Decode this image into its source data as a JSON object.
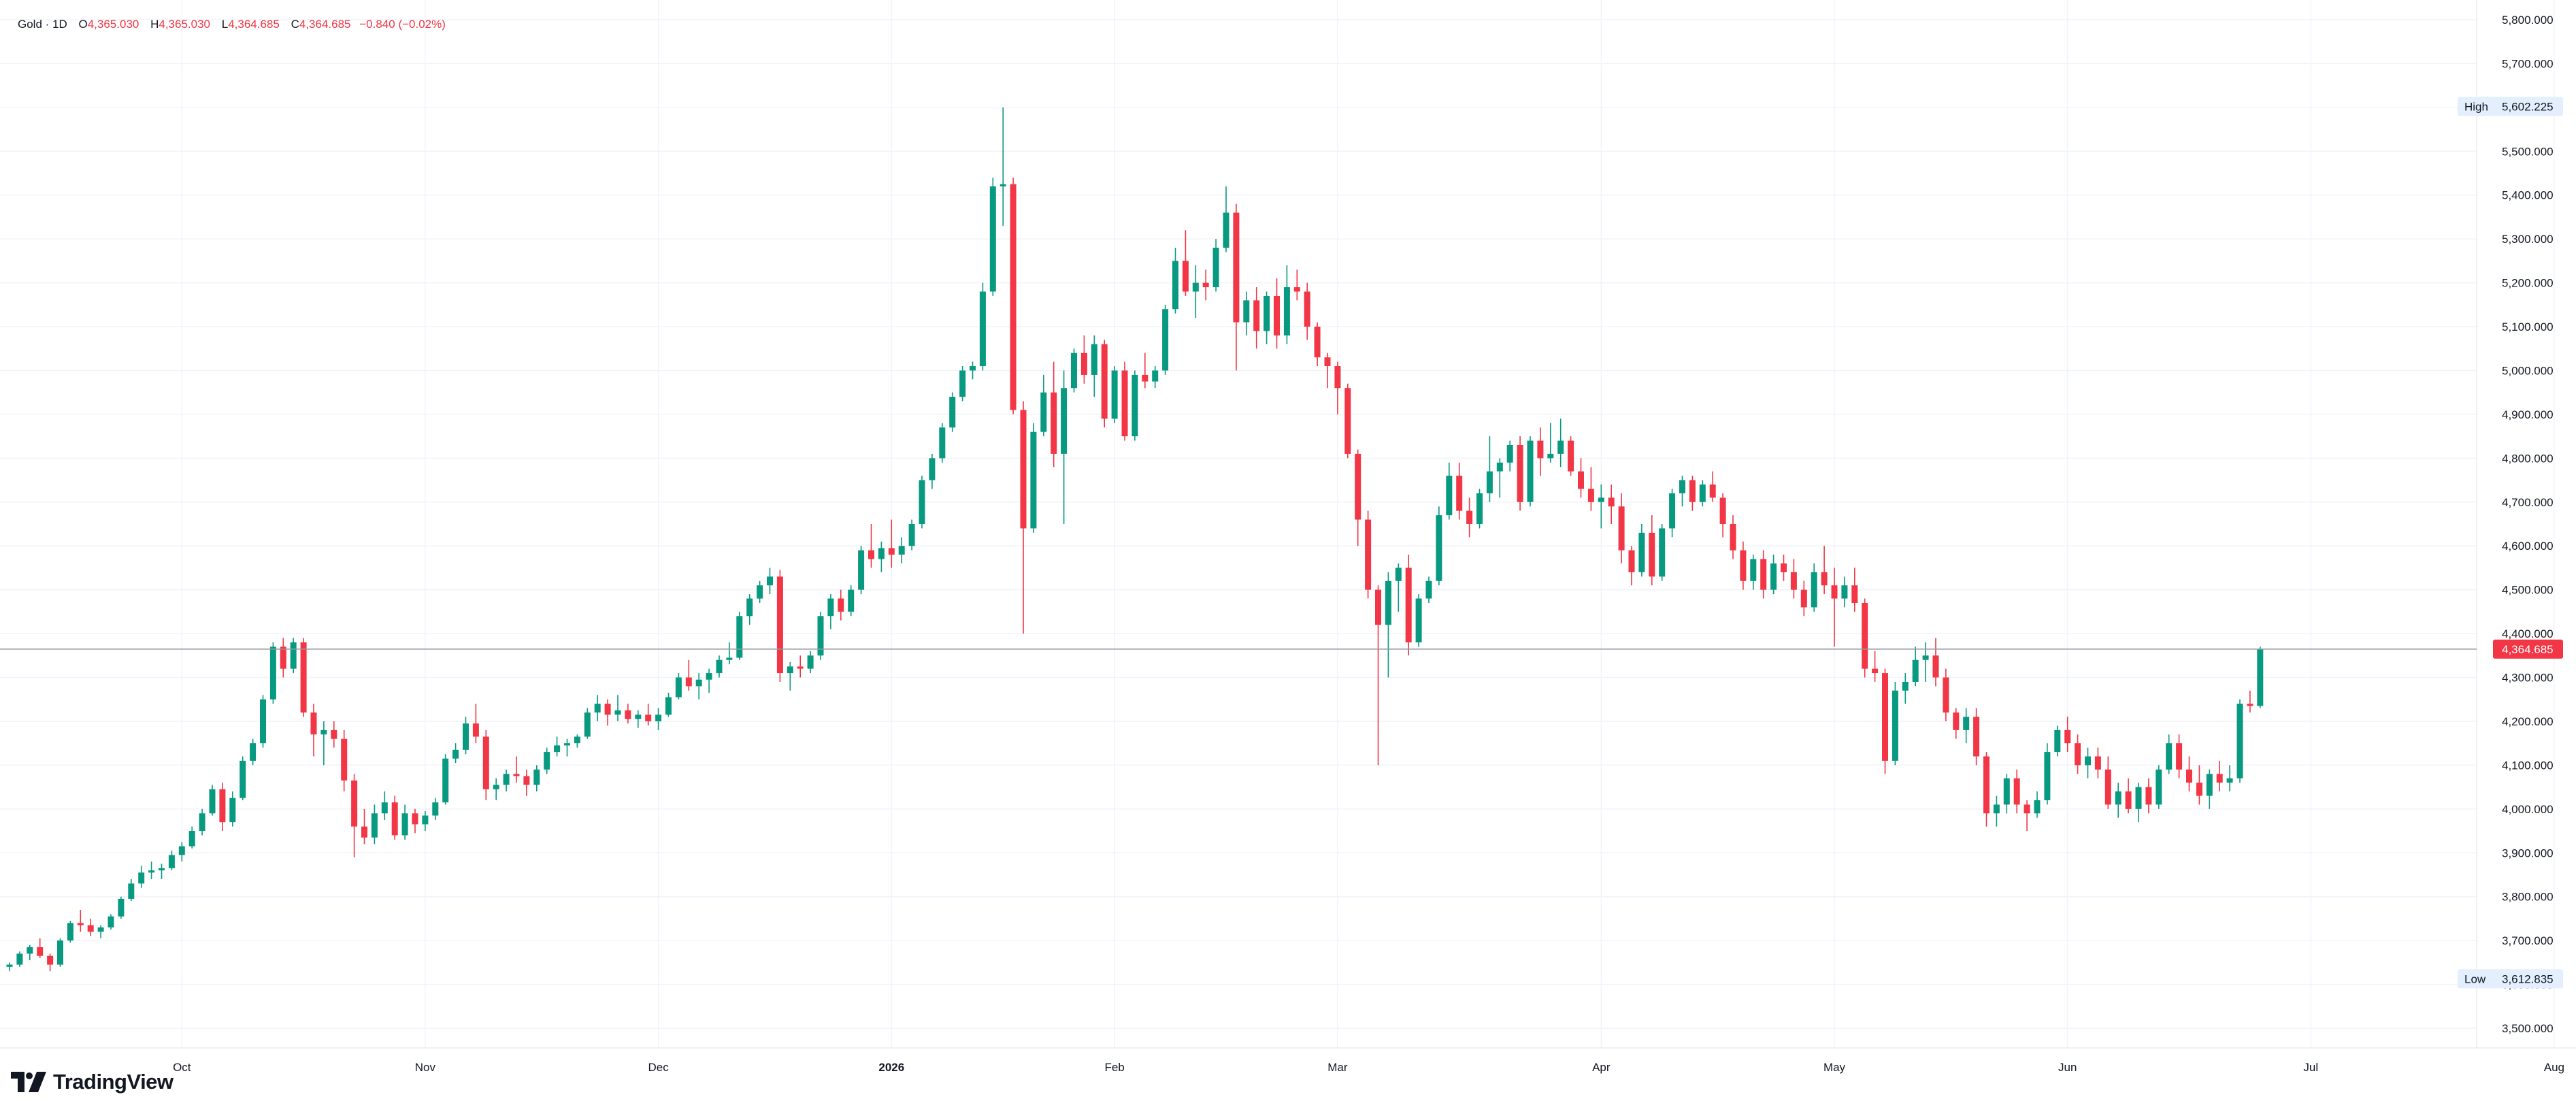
{
  "legend": {
    "symbol": "Gold · 1D",
    "open_label": "O",
    "open": "4,365.030",
    "high_label": "H",
    "high": "4,365.030",
    "low_label": "L",
    "low": "4,364.685",
    "close_label": "C",
    "close": "4,364.685",
    "change": "−0.840 (−0.02%)"
  },
  "brand": {
    "name": "TradingView"
  },
  "colors": {
    "up": "#089981",
    "down": "#f23645",
    "grid": "#f0f3fa",
    "axis_text": "#131722",
    "price_line": "#9598a1",
    "badge_bg": "#e3effd"
  },
  "chart_data": {
    "type": "candlestick",
    "title": "Gold · 1D",
    "price_axis": {
      "ticks": [
        3500,
        3600,
        3700,
        3800,
        3900,
        4000,
        4100,
        4200,
        4300,
        4400,
        4500,
        4600,
        4700,
        4800,
        4900,
        5000,
        5100,
        5200,
        5300,
        5400,
        5500,
        5600,
        5700,
        5800
      ],
      "tick_labels": [
        "3,500.000",
        "3,600.000",
        "3,700.000",
        "3,800.000",
        "3,900.000",
        "4,000.000",
        "4,100.000",
        "4,200.000",
        "4,300.000",
        "4,400.000",
        "4,500.000",
        "4,600.000",
        "4,700.000",
        "4,800.000",
        "4,900.000",
        "5,000.000",
        "5,100.000",
        "5,200.000",
        "5,300.000",
        "5,400.000",
        "5,500.000",
        "5,600.000",
        "5,700.000",
        "5,800.000"
      ],
      "ylim": [
        3455,
        5845
      ]
    },
    "time_axis": {
      "labels": [
        {
          "text": "Oct",
          "index": 17,
          "bold": false
        },
        {
          "text": "Nov",
          "index": 41,
          "bold": false
        },
        {
          "text": "Dec",
          "index": 64,
          "bold": false
        },
        {
          "text": "2026",
          "index": 87,
          "bold": true
        },
        {
          "text": "Feb",
          "index": 109,
          "bold": false
        },
        {
          "text": "Mar",
          "index": 131,
          "bold": false
        },
        {
          "text": "Apr",
          "index": 157,
          "bold": false
        },
        {
          "text": "May",
          "index": 180,
          "bold": false
        },
        {
          "text": "Jun",
          "index": 203,
          "bold": false
        },
        {
          "text": "Jul",
          "index": 227,
          "bold": false
        },
        {
          "text": "Aug",
          "index": 251,
          "bold": false
        }
      ]
    },
    "high_marker": {
      "label": "High",
      "value": 5602.225,
      "value_text": "5,602.225"
    },
    "low_marker": {
      "label": "Low",
      "value": 3612.835,
      "value_text": "3,612.835"
    },
    "last_price": {
      "value": 4364.685,
      "value_text": "4,364.685"
    },
    "ohlc": [
      [
        3640,
        3650,
        3630,
        3645
      ],
      [
        3645,
        3675,
        3640,
        3670
      ],
      [
        3670,
        3690,
        3655,
        3685
      ],
      [
        3685,
        3705,
        3660,
        3665
      ],
      [
        3665,
        3670,
        3630,
        3645
      ],
      [
        3645,
        3705,
        3640,
        3700
      ],
      [
        3700,
        3745,
        3695,
        3740
      ],
      [
        3740,
        3770,
        3720,
        3735
      ],
      [
        3735,
        3750,
        3710,
        3720
      ],
      [
        3720,
        3735,
        3705,
        3730
      ],
      [
        3730,
        3760,
        3725,
        3755
      ],
      [
        3755,
        3800,
        3750,
        3795
      ],
      [
        3795,
        3840,
        3790,
        3830
      ],
      [
        3830,
        3870,
        3820,
        3855
      ],
      [
        3855,
        3880,
        3840,
        3860
      ],
      [
        3860,
        3875,
        3840,
        3865
      ],
      [
        3865,
        3905,
        3860,
        3895
      ],
      [
        3895,
        3925,
        3880,
        3915
      ],
      [
        3915,
        3960,
        3910,
        3950
      ],
      [
        3950,
        4000,
        3940,
        3990
      ],
      [
        3990,
        4055,
        3985,
        4045
      ],
      [
        4045,
        4060,
        3950,
        3970
      ],
      [
        3970,
        4040,
        3960,
        4025
      ],
      [
        4025,
        4120,
        4020,
        4110
      ],
      [
        4110,
        4160,
        4100,
        4150
      ],
      [
        4150,
        4260,
        4140,
        4250
      ],
      [
        4250,
        4380,
        4240,
        4370
      ],
      [
        4370,
        4390,
        4300,
        4320
      ],
      [
        4320,
        4390,
        4310,
        4380
      ],
      [
        4380,
        4390,
        4210,
        4220
      ],
      [
        4220,
        4240,
        4120,
        4170
      ],
      [
        4170,
        4200,
        4100,
        4180
      ],
      [
        4180,
        4200,
        4140,
        4160
      ],
      [
        4160,
        4180,
        4040,
        4065
      ],
      [
        4065,
        4080,
        3890,
        3960
      ],
      [
        3960,
        4000,
        3920,
        3935
      ],
      [
        3935,
        4010,
        3920,
        3990
      ],
      [
        3990,
        4040,
        3975,
        4015
      ],
      [
        4015,
        4030,
        3930,
        3940
      ],
      [
        3940,
        4010,
        3930,
        3990
      ],
      [
        3990,
        4000,
        3945,
        3965
      ],
      [
        3965,
        3995,
        3950,
        3985
      ],
      [
        3985,
        4025,
        3975,
        4015
      ],
      [
        4015,
        4125,
        4010,
        4115
      ],
      [
        4115,
        4150,
        4105,
        4135
      ],
      [
        4135,
        4210,
        4125,
        4195
      ],
      [
        4195,
        4240,
        4150,
        4165
      ],
      [
        4165,
        4180,
        4020,
        4045
      ],
      [
        4045,
        4070,
        4020,
        4055
      ],
      [
        4055,
        4090,
        4040,
        4080
      ],
      [
        4080,
        4120,
        4060,
        4075
      ],
      [
        4075,
        4090,
        4030,
        4055
      ],
      [
        4055,
        4100,
        4040,
        4090
      ],
      [
        4090,
        4140,
        4080,
        4130
      ],
      [
        4130,
        4165,
        4120,
        4145
      ],
      [
        4145,
        4160,
        4120,
        4150
      ],
      [
        4150,
        4170,
        4140,
        4165
      ],
      [
        4165,
        4230,
        4160,
        4220
      ],
      [
        4220,
        4260,
        4200,
        4240
      ],
      [
        4240,
        4250,
        4190,
        4215
      ],
      [
        4215,
        4260,
        4200,
        4225
      ],
      [
        4225,
        4240,
        4195,
        4205
      ],
      [
        4205,
        4225,
        4185,
        4215
      ],
      [
        4215,
        4240,
        4190,
        4200
      ],
      [
        4200,
        4230,
        4180,
        4215
      ],
      [
        4215,
        4265,
        4210,
        4255
      ],
      [
        4255,
        4310,
        4250,
        4300
      ],
      [
        4300,
        4340,
        4270,
        4280
      ],
      [
        4280,
        4310,
        4250,
        4295
      ],
      [
        4295,
        4320,
        4265,
        4310
      ],
      [
        4310,
        4350,
        4300,
        4340
      ],
      [
        4340,
        4380,
        4330,
        4345
      ],
      [
        4345,
        4450,
        4340,
        4440
      ],
      [
        4440,
        4490,
        4420,
        4480
      ],
      [
        4480,
        4520,
        4470,
        4510
      ],
      [
        4510,
        4550,
        4490,
        4530
      ],
      [
        4530,
        4545,
        4290,
        4310
      ],
      [
        4310,
        4335,
        4270,
        4325
      ],
      [
        4325,
        4350,
        4300,
        4320
      ],
      [
        4320,
        4360,
        4310,
        4350
      ],
      [
        4350,
        4450,
        4340,
        4440
      ],
      [
        4440,
        4490,
        4410,
        4480
      ],
      [
        4480,
        4500,
        4430,
        4450
      ],
      [
        4450,
        4510,
        4440,
        4500
      ],
      [
        4500,
        4600,
        4490,
        4590
      ],
      [
        4590,
        4650,
        4550,
        4570
      ],
      [
        4570,
        4610,
        4540,
        4595
      ],
      [
        4595,
        4660,
        4550,
        4580
      ],
      [
        4580,
        4620,
        4560,
        4600
      ],
      [
        4600,
        4660,
        4590,
        4650
      ],
      [
        4650,
        4760,
        4640,
        4750
      ],
      [
        4750,
        4810,
        4730,
        4800
      ],
      [
        4800,
        4880,
        4790,
        4870
      ],
      [
        4870,
        4950,
        4860,
        4940
      ],
      [
        4940,
        5010,
        4930,
        5000
      ],
      [
        5000,
        5020,
        4980,
        5010
      ],
      [
        5010,
        5200,
        5000,
        5180
      ],
      [
        5180,
        5440,
        5170,
        5420
      ],
      [
        5420,
        5600,
        5330,
        5425
      ],
      [
        5425,
        5440,
        4900,
        4910
      ],
      [
        4910,
        4930,
        4400,
        4640
      ],
      [
        4640,
        4880,
        4630,
        4860
      ],
      [
        4860,
        4990,
        4850,
        4950
      ],
      [
        4950,
        5020,
        4780,
        4810
      ],
      [
        4810,
        5000,
        4650,
        4960
      ],
      [
        4960,
        5050,
        4950,
        5040
      ],
      [
        5040,
        5080,
        4970,
        4990
      ],
      [
        4990,
        5080,
        4940,
        5060
      ],
      [
        5060,
        5070,
        4870,
        4890
      ],
      [
        4890,
        5010,
        4880,
        5000
      ],
      [
        5000,
        5020,
        4840,
        4850
      ],
      [
        4850,
        5000,
        4840,
        4990
      ],
      [
        4990,
        5040,
        4960,
        4975
      ],
      [
        4975,
        5010,
        4960,
        5000
      ],
      [
        5000,
        5150,
        4990,
        5140
      ],
      [
        5140,
        5280,
        5130,
        5250
      ],
      [
        5250,
        5320,
        5170,
        5180
      ],
      [
        5180,
        5240,
        5120,
        5200
      ],
      [
        5200,
        5230,
        5160,
        5190
      ],
      [
        5190,
        5300,
        5180,
        5280
      ],
      [
        5280,
        5420,
        5270,
        5360
      ],
      [
        5360,
        5380,
        5000,
        5110
      ],
      [
        5110,
        5180,
        5080,
        5160
      ],
      [
        5160,
        5190,
        5050,
        5090
      ],
      [
        5090,
        5180,
        5060,
        5170
      ],
      [
        5170,
        5210,
        5050,
        5080
      ],
      [
        5080,
        5240,
        5060,
        5190
      ],
      [
        5190,
        5230,
        5160,
        5180
      ],
      [
        5180,
        5200,
        5070,
        5100
      ],
      [
        5100,
        5110,
        5010,
        5030
      ],
      [
        5030,
        5040,
        4960,
        5010
      ],
      [
        5010,
        5020,
        4900,
        4960
      ],
      [
        4960,
        4970,
        4800,
        4810
      ],
      [
        4810,
        4820,
        4600,
        4660
      ],
      [
        4660,
        4680,
        4480,
        4500
      ],
      [
        4500,
        4510,
        4100,
        4420
      ],
      [
        4420,
        4540,
        4300,
        4520
      ],
      [
        4520,
        4560,
        4450,
        4550
      ],
      [
        4550,
        4580,
        4350,
        4380
      ],
      [
        4380,
        4490,
        4370,
        4480
      ],
      [
        4480,
        4530,
        4470,
        4520
      ],
      [
        4520,
        4690,
        4510,
        4670
      ],
      [
        4670,
        4790,
        4660,
        4760
      ],
      [
        4760,
        4790,
        4660,
        4680
      ],
      [
        4680,
        4710,
        4620,
        4650
      ],
      [
        4650,
        4730,
        4640,
        4720
      ],
      [
        4720,
        4850,
        4700,
        4770
      ],
      [
        4770,
        4800,
        4710,
        4790
      ],
      [
        4790,
        4840,
        4770,
        4830
      ],
      [
        4830,
        4850,
        4680,
        4700
      ],
      [
        4700,
        4850,
        4690,
        4840
      ],
      [
        4840,
        4870,
        4760,
        4800
      ],
      [
        4800,
        4880,
        4790,
        4810
      ],
      [
        4810,
        4890,
        4780,
        4840
      ],
      [
        4840,
        4850,
        4760,
        4770
      ],
      [
        4770,
        4800,
        4710,
        4730
      ],
      [
        4730,
        4780,
        4680,
        4700
      ],
      [
        4700,
        4740,
        4640,
        4710
      ],
      [
        4710,
        4740,
        4650,
        4690
      ],
      [
        4690,
        4720,
        4560,
        4590
      ],
      [
        4590,
        4600,
        4510,
        4540
      ],
      [
        4540,
        4650,
        4530,
        4630
      ],
      [
        4630,
        4670,
        4510,
        4530
      ],
      [
        4530,
        4650,
        4520,
        4640
      ],
      [
        4640,
        4730,
        4620,
        4720
      ],
      [
        4720,
        4760,
        4690,
        4750
      ],
      [
        4750,
        4760,
        4680,
        4700
      ],
      [
        4700,
        4750,
        4690,
        4740
      ],
      [
        4740,
        4770,
        4700,
        4710
      ],
      [
        4710,
        4720,
        4620,
        4650
      ],
      [
        4650,
        4670,
        4570,
        4590
      ],
      [
        4590,
        4610,
        4500,
        4520
      ],
      [
        4520,
        4580,
        4500,
        4570
      ],
      [
        4570,
        4590,
        4480,
        4500
      ],
      [
        4500,
        4580,
        4490,
        4560
      ],
      [
        4560,
        4580,
        4520,
        4540
      ],
      [
        4540,
        4570,
        4480,
        4500
      ],
      [
        4500,
        4520,
        4440,
        4460
      ],
      [
        4460,
        4560,
        4450,
        4540
      ],
      [
        4540,
        4600,
        4490,
        4510
      ],
      [
        4510,
        4550,
        4370,
        4480
      ],
      [
        4480,
        4530,
        4460,
        4510
      ],
      [
        4510,
        4550,
        4450,
        4470
      ],
      [
        4470,
        4480,
        4300,
        4320
      ],
      [
        4320,
        4360,
        4290,
        4310
      ],
      [
        4310,
        4320,
        4080,
        4110
      ],
      [
        4110,
        4290,
        4100,
        4270
      ],
      [
        4270,
        4310,
        4240,
        4290
      ],
      [
        4290,
        4370,
        4280,
        4340
      ],
      [
        4340,
        4380,
        4290,
        4350
      ],
      [
        4350,
        4390,
        4280,
        4300
      ],
      [
        4300,
        4320,
        4200,
        4220
      ],
      [
        4220,
        4230,
        4160,
        4180
      ],
      [
        4180,
        4230,
        4150,
        4210
      ],
      [
        4210,
        4230,
        4100,
        4120
      ],
      [
        4120,
        4130,
        3960,
        3990
      ],
      [
        3990,
        4030,
        3960,
        4010
      ],
      [
        4010,
        4080,
        3990,
        4070
      ],
      [
        4070,
        4090,
        3990,
        4010
      ],
      [
        4010,
        4020,
        3950,
        3990
      ],
      [
        3990,
        4040,
        3980,
        4020
      ],
      [
        4020,
        4150,
        4010,
        4130
      ],
      [
        4130,
        4190,
        4120,
        4180
      ],
      [
        4180,
        4210,
        4130,
        4150
      ],
      [
        4150,
        4170,
        4080,
        4100
      ],
      [
        4100,
        4140,
        4070,
        4120
      ],
      [
        4120,
        4140,
        4070,
        4090
      ],
      [
        4090,
        4120,
        4000,
        4010
      ],
      [
        4010,
        4060,
        3980,
        4040
      ],
      [
        4040,
        4070,
        3990,
        4000
      ],
      [
        4000,
        4060,
        3970,
        4050
      ],
      [
        4050,
        4070,
        3990,
        4010
      ],
      [
        4010,
        4100,
        4000,
        4090
      ],
      [
        4090,
        4170,
        4080,
        4150
      ],
      [
        4150,
        4170,
        4070,
        4090
      ],
      [
        4090,
        4120,
        4040,
        4060
      ],
      [
        4060,
        4100,
        4010,
        4030
      ],
      [
        4030,
        4090,
        4000,
        4080
      ],
      [
        4080,
        4110,
        4040,
        4060
      ],
      [
        4060,
        4100,
        4040,
        4070
      ],
      [
        4070,
        4250,
        4060,
        4240
      ],
      [
        4240,
        4270,
        4220,
        4235
      ],
      [
        4235,
        4370,
        4230,
        4365
      ]
    ]
  }
}
